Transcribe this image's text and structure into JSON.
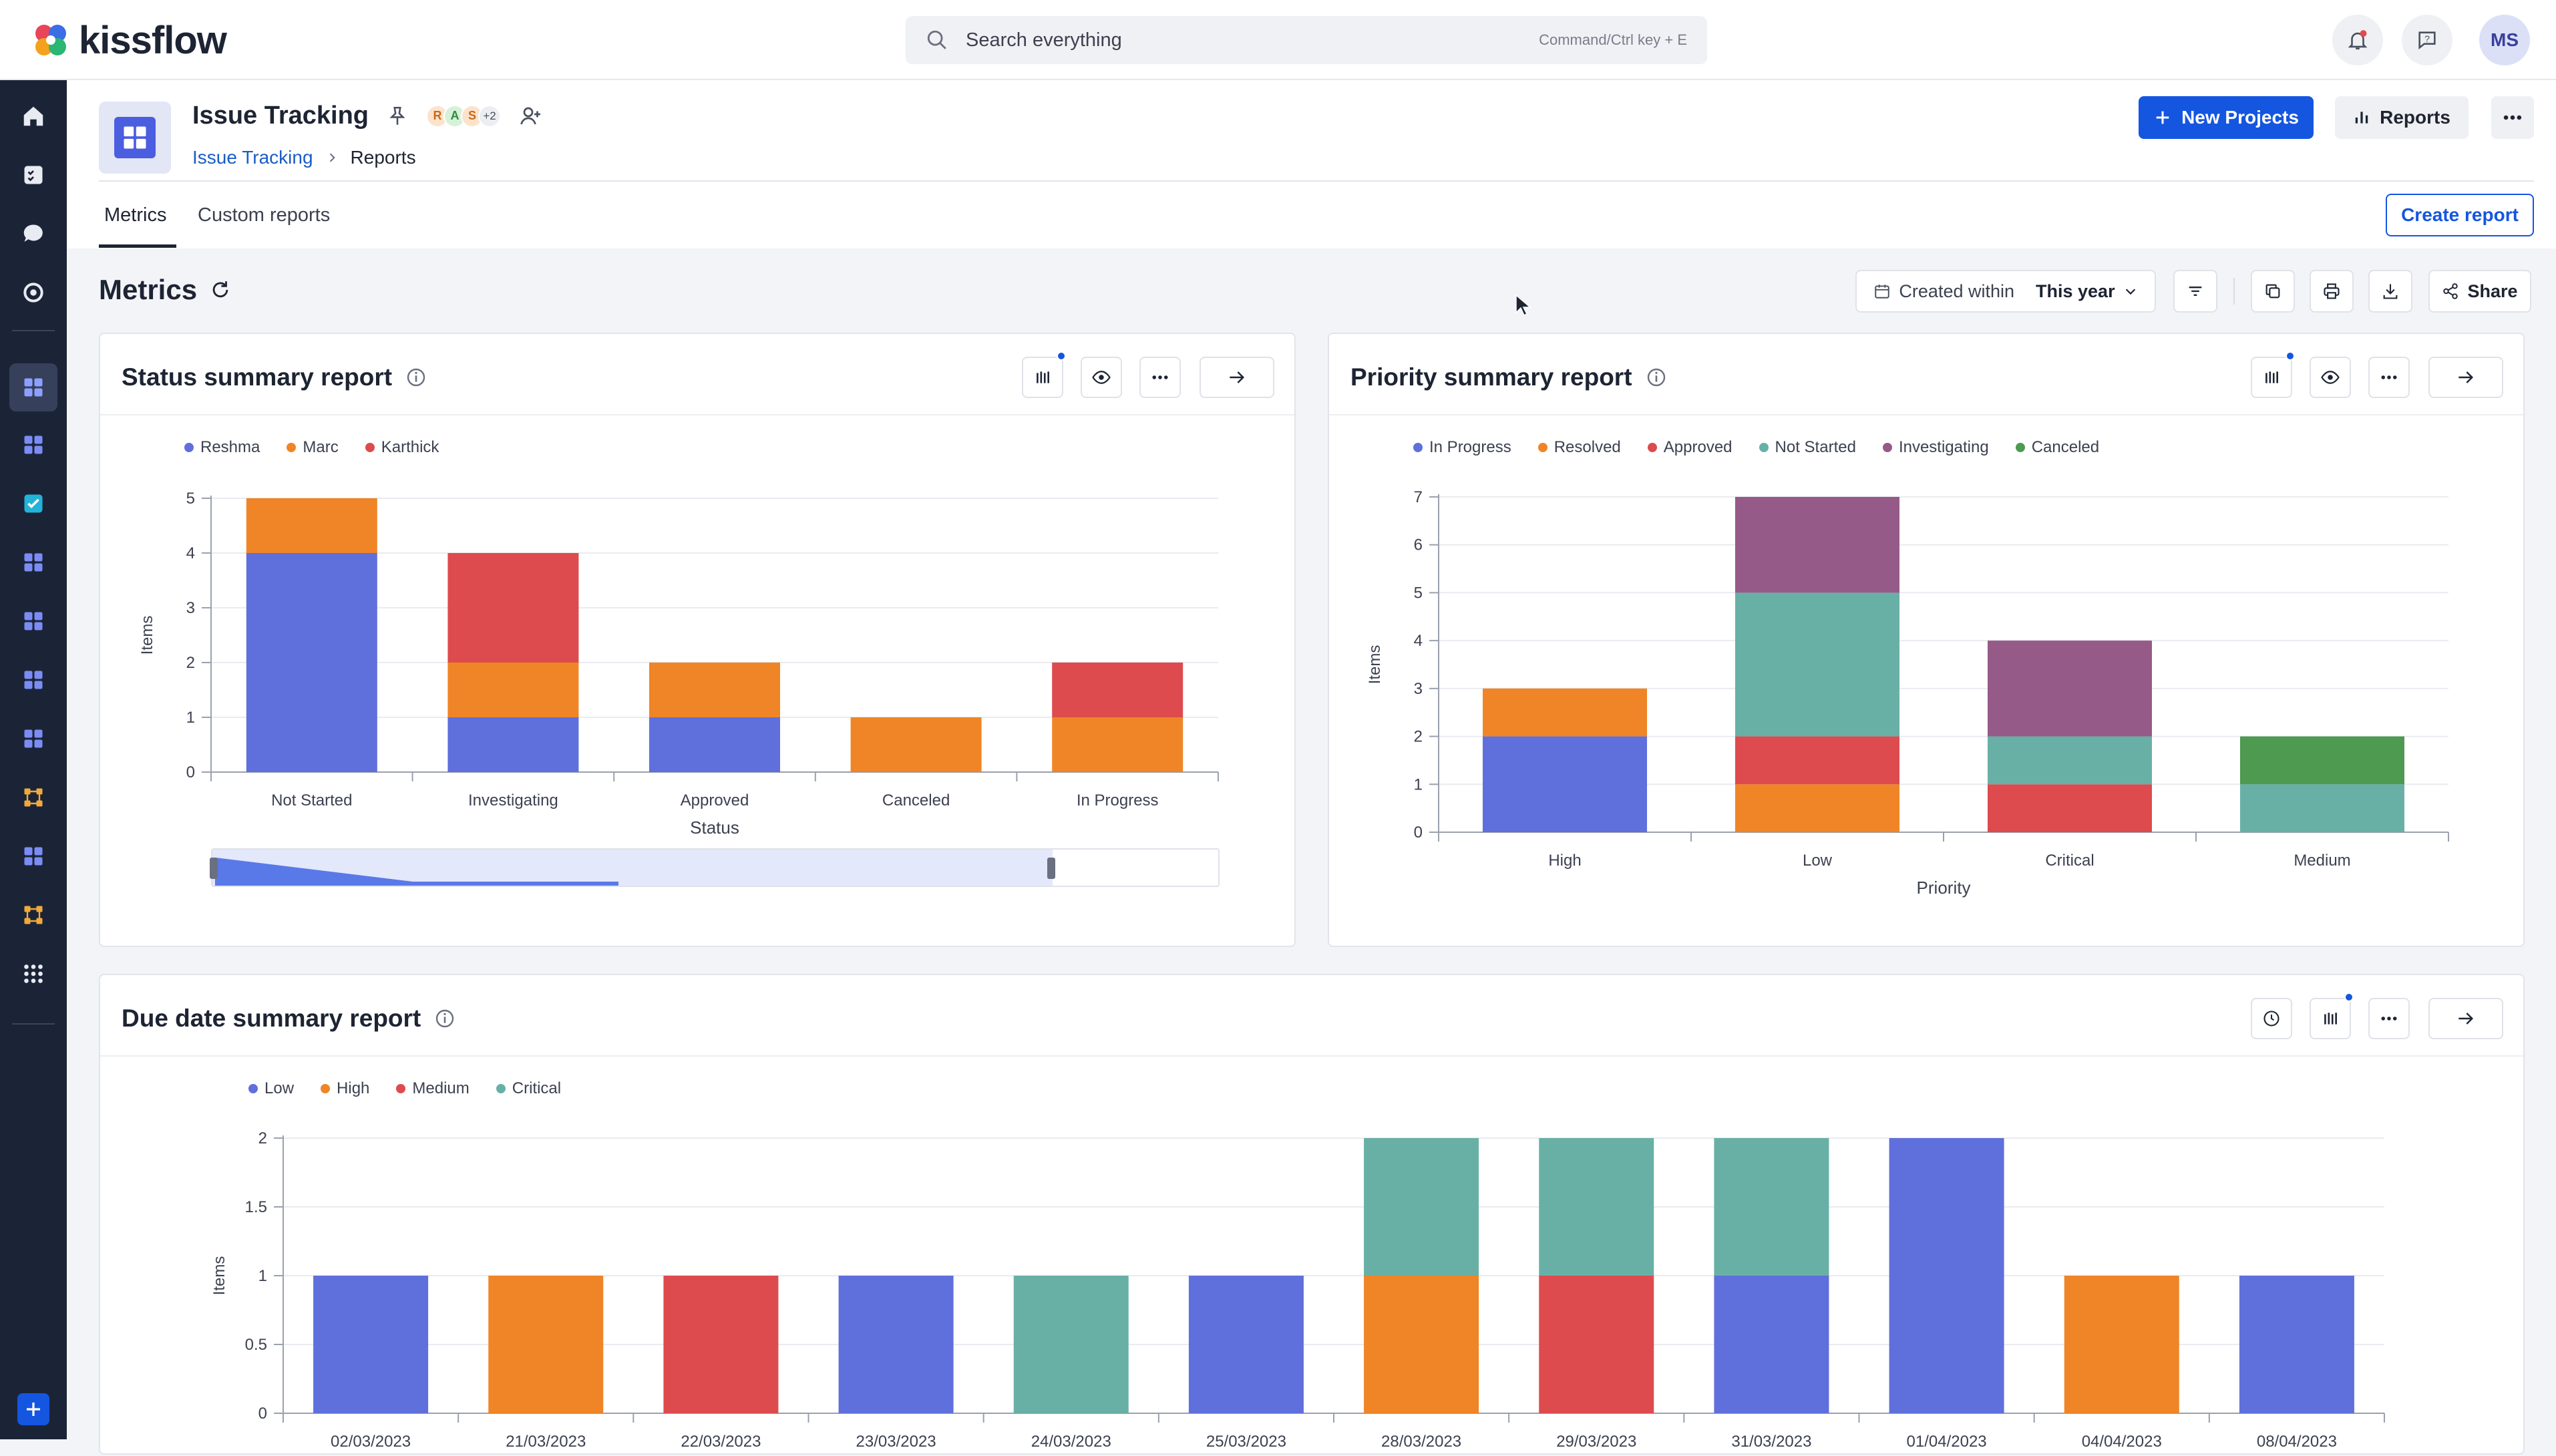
{
  "brand": {
    "name": "kissflow"
  },
  "search": {
    "placeholder": "Search everything",
    "shortcut": "Command/Ctrl key + E"
  },
  "user": {
    "initials": "MS"
  },
  "app": {
    "title": "Issue Tracking",
    "collaborators": [
      "R",
      "A",
      "S"
    ],
    "collaborators_more": "+2",
    "breadcrumb": {
      "root": "Issue Tracking",
      "current": "Reports"
    },
    "new_button": "New Projects",
    "reports_button": "Reports"
  },
  "tabs": {
    "metrics": "Metrics",
    "custom": "Custom reports",
    "create_report": "Create report"
  },
  "metrics": {
    "title": "Metrics",
    "filter_label": "Created within",
    "filter_value": "This year",
    "share_label": "Share"
  },
  "colors": {
    "blue": "#5f6fdb",
    "orange": "#ef8526",
    "red": "#dd4b4e",
    "teal": "#68b0a6",
    "purple": "#965a88",
    "green": "#4e9a51"
  },
  "panels": {
    "status": {
      "title": "Status summary report"
    },
    "priority": {
      "title": "Priority summary report"
    },
    "due": {
      "title": "Due date summary report"
    }
  },
  "chart_data": [
    {
      "type": "bar",
      "stacked": true,
      "title": "Status summary report",
      "xlabel": "Status",
      "ylabel": "Items",
      "ylim": [
        0,
        5
      ],
      "yticks": [
        "0",
        "1",
        "2",
        "3",
        "4",
        "5"
      ],
      "categories": [
        "Not Started",
        "Investigating",
        "Approved",
        "Canceled",
        "In Progress"
      ],
      "series": [
        {
          "name": "Reshma",
          "color": "#5f6fdb",
          "values": [
            4,
            1,
            1,
            0,
            0
          ]
        },
        {
          "name": "Marc",
          "color": "#ef8526",
          "values": [
            1,
            1,
            1,
            1,
            1
          ]
        },
        {
          "name": "Karthick",
          "color": "#dd4b4e",
          "values": [
            0,
            2,
            0,
            0,
            1
          ]
        }
      ],
      "legend": "top-left",
      "grid": true
    },
    {
      "type": "bar",
      "stacked": true,
      "title": "Priority summary report",
      "xlabel": "Priority",
      "ylabel": "Items",
      "ylim": [
        0,
        7
      ],
      "yticks": [
        "0",
        "1",
        "2",
        "3",
        "4",
        "5",
        "6",
        "7"
      ],
      "categories": [
        "High",
        "Low",
        "Critical",
        "Medium"
      ],
      "series": [
        {
          "name": "In Progress",
          "color": "#5f6fdb",
          "values": [
            2,
            0,
            0,
            0
          ]
        },
        {
          "name": "Resolved",
          "color": "#ef8526",
          "values": [
            1,
            1,
            0,
            0
          ]
        },
        {
          "name": "Approved",
          "color": "#dd4b4e",
          "values": [
            0,
            1,
            1,
            0
          ]
        },
        {
          "name": "Not Started",
          "color": "#68b0a6",
          "values": [
            0,
            3,
            1,
            1
          ]
        },
        {
          "name": "Investigating",
          "color": "#965a88",
          "values": [
            0,
            2,
            2,
            0
          ]
        },
        {
          "name": "Canceled",
          "color": "#4e9a51",
          "values": [
            0,
            0,
            0,
            1
          ]
        }
      ],
      "legend": "top-left",
      "grid": true
    },
    {
      "type": "bar",
      "stacked": true,
      "title": "Due date summary report",
      "ylabel": "Items",
      "ylim": [
        0,
        2
      ],
      "yticks": [
        "0",
        "0.5",
        "1",
        "1.5",
        "2"
      ],
      "categories": [
        "02/03/2023",
        "21/03/2023",
        "22/03/2023",
        "23/03/2023",
        "24/03/2023",
        "25/03/2023",
        "28/03/2023",
        "29/03/2023",
        "31/03/2023",
        "01/04/2023",
        "04/04/2023",
        "08/04/2023"
      ],
      "series": [
        {
          "name": "Low",
          "color": "#5f6fdb",
          "values": [
            1,
            0,
            0,
            1,
            0,
            1,
            0,
            0,
            1,
            2,
            0,
            1
          ]
        },
        {
          "name": "High",
          "color": "#ef8526",
          "values": [
            0,
            1,
            0,
            0,
            0,
            0,
            1,
            0,
            0,
            0,
            1,
            0
          ]
        },
        {
          "name": "Medium",
          "color": "#dd4b4e",
          "values": [
            0,
            0,
            1,
            0,
            0,
            0,
            0,
            1,
            0,
            0,
            0,
            0
          ]
        },
        {
          "name": "Critical",
          "color": "#68b0a6",
          "values": [
            0,
            0,
            0,
            0,
            1,
            0,
            1,
            1,
            1,
            0,
            0,
            0
          ]
        }
      ],
      "legend": "top-left",
      "grid": true
    }
  ]
}
